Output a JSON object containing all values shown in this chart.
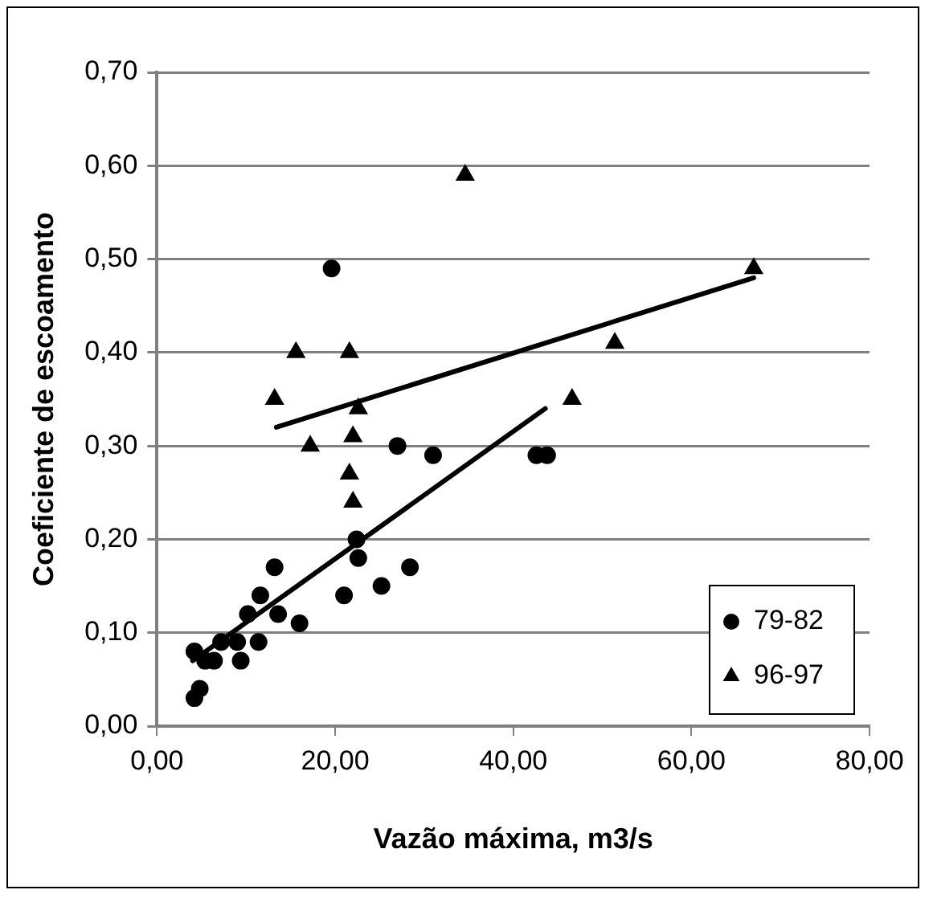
{
  "chart_data": {
    "type": "scatter",
    "xlabel": "Vazão máxima, m3/s",
    "ylabel": "Coeficiente de escoamento",
    "xlim": [
      0,
      80
    ],
    "xticks": [
      {
        "value": 0,
        "label": "0,00"
      },
      {
        "value": 20,
        "label": "20,00"
      },
      {
        "value": 40,
        "label": "40,00"
      },
      {
        "value": 60,
        "label": "60,00"
      },
      {
        "value": 80,
        "label": "80,00"
      }
    ],
    "ylim": [
      0,
      0.7
    ],
    "yticks": [
      {
        "value": 0,
        "label": "0,00"
      },
      {
        "value": 0.1,
        "label": "0,10"
      },
      {
        "value": 0.2,
        "label": "0,20"
      },
      {
        "value": 0.3,
        "label": "0,30"
      },
      {
        "value": 0.4,
        "label": "0,40"
      },
      {
        "value": 0.5,
        "label": "0,50"
      },
      {
        "value": 0.6,
        "label": "0,60"
      },
      {
        "value": 0.7,
        "label": "0,70"
      }
    ],
    "grid": "y",
    "legend": "bottom right",
    "series": [
      {
        "name": "79-82",
        "marker": "circle",
        "color": "#000000",
        "x": [
          4.2,
          4.8,
          4.2,
          5.4,
          6.4,
          7.2,
          9.4,
          9,
          11.4,
          10.2,
          11.6,
          13.2,
          13.6,
          16,
          21,
          22.4,
          22.6,
          25.2,
          28.4,
          19.6,
          27,
          31,
          42.6,
          43.8
        ],
        "values": [
          0.03,
          0.04,
          0.08,
          0.07,
          0.07,
          0.09,
          0.07,
          0.09,
          0.09,
          0.12,
          0.14,
          0.17,
          0.12,
          0.11,
          0.14,
          0.2,
          0.18,
          0.15,
          0.17,
          0.49,
          0.3,
          0.29,
          0.29,
          0.29
        ]
      },
      {
        "name": "96-97",
        "marker": "triangle",
        "color": "#000000",
        "x": [
          13.2,
          15.6,
          17.2,
          34.6,
          67,
          51.4,
          46.6,
          21.6,
          22.6,
          22,
          21.6,
          22
        ],
        "values": [
          0.35,
          0.4,
          0.3,
          0.59,
          0.49,
          0.41,
          0.35,
          0.4,
          0.34,
          0.31,
          0.27,
          0.24
        ]
      },
      {
        "type": "line",
        "marker": "none",
        "color": "#000000",
        "x": [
          4,
          43.6
        ],
        "values": [
          0.07,
          0.34
        ]
      },
      {
        "type": "line",
        "marker": "none",
        "color": "#000000",
        "x": [
          13.4,
          67
        ],
        "values": [
          0.32,
          0.48
        ]
      }
    ]
  }
}
